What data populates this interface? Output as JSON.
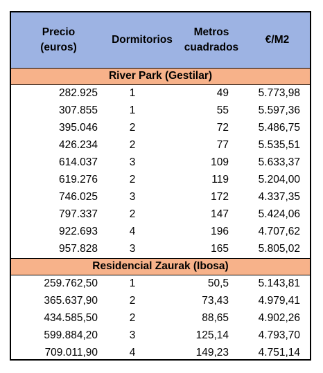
{
  "headers": {
    "price_line1": "Precio",
    "price_line2": "(euros)",
    "rooms": "Dormitorios",
    "area_line1": "Metros",
    "area_line2": "cuadrados",
    "eur_m2": "€/M2"
  },
  "groups": [
    {
      "name": "River Park (Gestilar)",
      "rows": [
        {
          "precio": "282.925",
          "dormitorios": "1",
          "metros": "49",
          "eur_m2": "5.773,98"
        },
        {
          "precio": "307.855",
          "dormitorios": "1",
          "metros": "55",
          "eur_m2": "5.597,36"
        },
        {
          "precio": "395.046",
          "dormitorios": "2",
          "metros": "72",
          "eur_m2": "5.486,75"
        },
        {
          "precio": "426.234",
          "dormitorios": "2",
          "metros": "77",
          "eur_m2": "5.535,51"
        },
        {
          "precio": "614.037",
          "dormitorios": "3",
          "metros": "109",
          "eur_m2": "5.633,37"
        },
        {
          "precio": "619.276",
          "dormitorios": "2",
          "metros": "119",
          "eur_m2": "5.204,00"
        },
        {
          "precio": "746.025",
          "dormitorios": "3",
          "metros": "172",
          "eur_m2": "4.337,35"
        },
        {
          "precio": "797.337",
          "dormitorios": "2",
          "metros": "147",
          "eur_m2": "5.424,06"
        },
        {
          "precio": "922.693",
          "dormitorios": "4",
          "metros": "196",
          "eur_m2": "4.707,62"
        },
        {
          "precio": "957.828",
          "dormitorios": "3",
          "metros": "165",
          "eur_m2": "5.805,02"
        }
      ]
    },
    {
      "name": "Residencial Zaurak (Ibosa)",
      "rows": [
        {
          "precio": "259.762,50",
          "dormitorios": "1",
          "metros": "50,5",
          "eur_m2": "5.143,81"
        },
        {
          "precio": "365.637,90",
          "dormitorios": "2",
          "metros": "73,43",
          "eur_m2": "4.979,41"
        },
        {
          "precio": "434.585,50",
          "dormitorios": "2",
          "metros": "88,65",
          "eur_m2": "4.902,26"
        },
        {
          "precio": "599.884,20",
          "dormitorios": "3",
          "metros": "125,14",
          "eur_m2": "4.793,70"
        },
        {
          "precio": "709.011,90",
          "dormitorios": "4",
          "metros": "149,23",
          "eur_m2": "4.751,14"
        }
      ]
    }
  ],
  "colors": {
    "header_bg": "#9db3e3",
    "group_bg": "#f7b28a",
    "border": "#000000"
  }
}
